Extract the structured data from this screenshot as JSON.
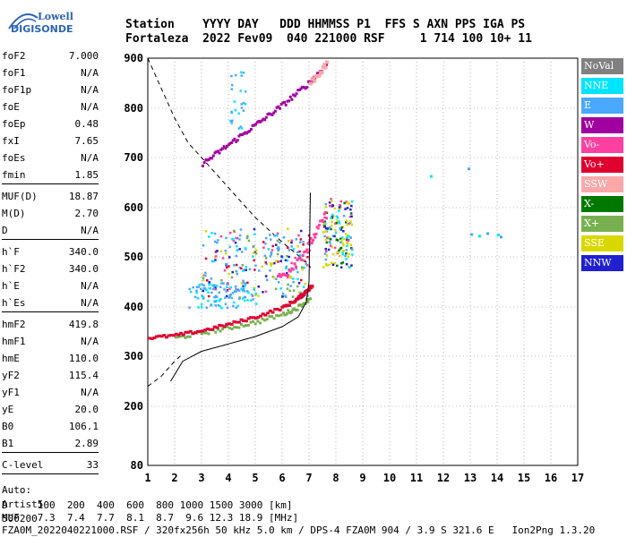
{
  "logo": {
    "line1": "Lowell",
    "line2": "DIGISONDE"
  },
  "header": {
    "row1": "Station    YYYY DAY   DDD HHMMSS P1  FFS S AXN PPS IGA PS",
    "row2": "Fortaleza  2022 Fev09  040 221000 RSF     1 714 100 10+ 11"
  },
  "params": [
    {
      "k": "foF2",
      "v": "7.000"
    },
    {
      "k": "foF1",
      "v": "N/A"
    },
    {
      "k": "foF1p",
      "v": "N/A"
    },
    {
      "k": "foE",
      "v": "N/A"
    },
    {
      "k": "foEp",
      "v": "0.48"
    },
    {
      "k": "fxI",
      "v": "7.65"
    },
    {
      "k": "foEs",
      "v": "N/A"
    },
    {
      "k": "fmin",
      "v": "1.85"
    },
    {
      "k": "MUF(D)",
      "v": "18.87"
    },
    {
      "k": "M(D)",
      "v": "2.70"
    },
    {
      "k": "D",
      "v": "N/A"
    },
    {
      "k": "h`F",
      "v": "340.0"
    },
    {
      "k": "h`F2",
      "v": "340.0"
    },
    {
      "k": "h`E",
      "v": "N/A"
    },
    {
      "k": "h`Es",
      "v": "N/A"
    },
    {
      "k": "hmF2",
      "v": "419.8"
    },
    {
      "k": "hmF1",
      "v": "N/A"
    },
    {
      "k": "hmE",
      "v": "110.0"
    },
    {
      "k": "yF2",
      "v": "115.4"
    },
    {
      "k": "yF1",
      "v": "N/A"
    },
    {
      "k": "yE",
      "v": "20.0"
    },
    {
      "k": "B0",
      "v": "106.1"
    },
    {
      "k": "B1",
      "v": "2.89"
    },
    {
      "k": "C-level",
      "v": "33"
    }
  ],
  "auto": {
    "l1": "Auto:",
    "l2": "Artist5",
    "l3": "500200"
  },
  "legend": [
    {
      "label": "NoVal",
      "color": "#808080"
    },
    {
      "label": "NNE",
      "color": "#00e5ff"
    },
    {
      "label": "E",
      "color": "#4aa8ff"
    },
    {
      "label": "W",
      "color": "#a000a0"
    },
    {
      "label": "Vo-",
      "color": "#ff40a0"
    },
    {
      "label": "Vo+",
      "color": "#e00030"
    },
    {
      "label": "SSW",
      "color": "#f8a8a8"
    },
    {
      "label": "X-",
      "color": "#007800"
    },
    {
      "label": "X+",
      "color": "#78b050"
    },
    {
      "label": "SSE",
      "color": "#d8d800"
    },
    {
      "label": "NNW",
      "color": "#2020d0"
    }
  ],
  "footer": {
    "row1": "D     100  200  400  600  800 1000 1500 3000 [km]",
    "row2": "MUF   7.3  7.4  7.7  8.1  8.7  9.6 12.3 18.9 [MHz]",
    "row3": "FZA0M_2022040221000.RSF / 320fx256h 50 kHz 5.0 km / DPS-4 FZA0M 904 / 3.9 S 321.6 E   Ion2Png 1.3.20"
  },
  "chart_data": {
    "type": "scatter",
    "xlim": [
      1,
      17
    ],
    "ylim": [
      80,
      900
    ],
    "x_ticks": [
      1,
      2,
      3,
      4,
      5,
      6,
      7,
      8,
      9,
      10,
      11,
      12,
      13,
      14,
      15,
      16,
      17
    ],
    "y_ticks": [
      80,
      200,
      300,
      400,
      500,
      600,
      700,
      800,
      900
    ],
    "grid": true,
    "profile_curve": [
      [
        1.85,
        250
      ],
      [
        2.3,
        290
      ],
      [
        3,
        310
      ],
      [
        4,
        325
      ],
      [
        5,
        340
      ],
      [
        6,
        360
      ],
      [
        6.6,
        380
      ],
      [
        6.9,
        410
      ],
      [
        7.0,
        450
      ],
      [
        7.02,
        520
      ],
      [
        7.05,
        630
      ]
    ],
    "trace_ordinary": [
      [
        1,
        340
      ],
      [
        2,
        345
      ],
      [
        3,
        355
      ],
      [
        4,
        368
      ],
      [
        5,
        383
      ],
      [
        6,
        402
      ],
      [
        6.5,
        418
      ],
      [
        6.8,
        432
      ],
      [
        7.05,
        445
      ]
    ],
    "trace_extraordinary": [
      [
        2,
        340
      ],
      [
        3,
        350
      ],
      [
        4,
        360
      ],
      [
        5,
        372
      ],
      [
        6,
        388
      ],
      [
        6.5,
        400
      ],
      [
        7,
        420
      ]
    ],
    "trace_fxI": [
      [
        5.8,
        460
      ],
      [
        6.2,
        475
      ],
      [
        6.6,
        500
      ],
      [
        7.0,
        530
      ],
      [
        7.3,
        560
      ],
      [
        7.6,
        590
      ]
    ],
    "multihop_trace": [
      [
        3,
        690
      ],
      [
        4,
        730
      ],
      [
        5,
        770
      ],
      [
        6,
        810
      ],
      [
        7,
        855
      ],
      [
        7.6,
        890
      ]
    ],
    "muf_dashed_curve": [
      [
        1,
        900
      ],
      [
        1.5,
        840
      ],
      [
        2,
        780
      ],
      [
        2.5,
        730
      ],
      [
        3,
        700
      ],
      [
        4,
        640
      ],
      [
        5,
        580
      ],
      [
        6,
        530
      ],
      [
        7,
        485
      ],
      [
        7.05,
        478
      ]
    ],
    "low_dashed_curve": [
      [
        1,
        240
      ],
      [
        1.5,
        260
      ],
      [
        2,
        290
      ],
      [
        2.3,
        305
      ]
    ],
    "es_points": [
      [
        13.0,
        548
      ],
      [
        13.3,
        545
      ],
      [
        13.6,
        550
      ],
      [
        14.0,
        547
      ],
      [
        14.1,
        543
      ],
      [
        11.5,
        665
      ],
      [
        12.9,
        680
      ]
    ]
  }
}
